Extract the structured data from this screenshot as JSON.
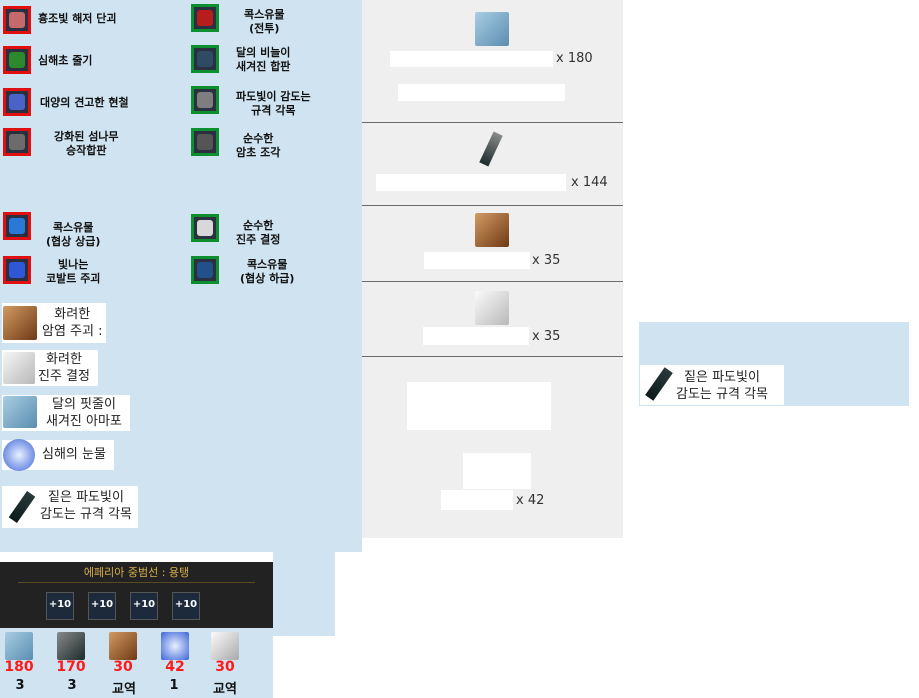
{
  "materials": {
    "left_col": [
      {
        "text": "흉조빛 해저 단괴",
        "icon": "ore-nodule-icon"
      },
      {
        "text": "심해초 줄기",
        "icon": "seaweed-stem-icon"
      },
      {
        "text": "대양의 견고한 현철",
        "icon": "blue-crystal-icon"
      },
      {
        "text": "강화된 섬나무\n승작합판",
        "icon": "plywood-icon"
      },
      {
        "text": "콕스유물\n(협상 상급)",
        "icon": "blue-relic-icon"
      },
      {
        "text": "빛나는\n코발트 주괴",
        "icon": "cobalt-ingot-icon"
      }
    ],
    "right_col": [
      {
        "text": "콕스유물\n(전투)",
        "icon": "red-relic-icon"
      },
      {
        "text": "달의 비늘이\n새겨진 합판",
        "icon": "moon-plywood-icon"
      },
      {
        "text": "파도빛이 감도는\n규격 각목",
        "icon": "timber-icon"
      },
      {
        "text": "순수한\n암초 조각",
        "icon": "reef-piece-icon"
      },
      {
        "text": "순수한\n진주 결정",
        "icon": "pearl-crystal-icon"
      },
      {
        "text": "콕스유물\n(협상 하급)",
        "icon": "blue-relic-low-icon"
      }
    ],
    "plain_list": [
      {
        "text": "화려한\n암염 주괴 :",
        "icon": "salt-ingot-icon"
      },
      {
        "text": "화려한\n진주 결정",
        "icon": "pearl-icon"
      },
      {
        "text": "달의 핏줄이\n새겨진 아마포",
        "icon": "linen-icon"
      },
      {
        "text": "심해의 눈물",
        "icon": "tear-icon"
      },
      {
        "text": "짙은 파도빛이\n감도는 규격 각목",
        "icon": "dark-timber-icon"
      }
    ]
  },
  "requirements": [
    {
      "qty": "x 180",
      "icon": "linen-icon"
    },
    {
      "qty": "x 144",
      "icon": "timber-icon"
    },
    {
      "qty": "x 35",
      "icon": "salt-ingot-icon"
    },
    {
      "qty": "x 35",
      "icon": "pearl-icon"
    },
    {
      "qty": "x 42",
      "icon": ""
    }
  ],
  "tooltip": {
    "text": "짙은 파도빛이\n감도는 규격 각목",
    "icon": "dark-timber-icon"
  },
  "game": {
    "title": "에페리아 중범선 : 용탱",
    "upgrades": [
      "+10",
      "+10",
      "+10",
      "+10"
    ],
    "items": [
      {
        "count": "180",
        "sub": "3"
      },
      {
        "count": "170",
        "sub": "3"
      },
      {
        "count": "30",
        "sub": "교역"
      },
      {
        "count": "42",
        "sub": "1"
      },
      {
        "count": "30",
        "sub": "교역"
      }
    ]
  },
  "colors": {
    "panel_blue": "#cfe3f1",
    "panel_grey": "#efefef",
    "frame_red": "#e01010",
    "frame_green": "#0b8f2f"
  }
}
